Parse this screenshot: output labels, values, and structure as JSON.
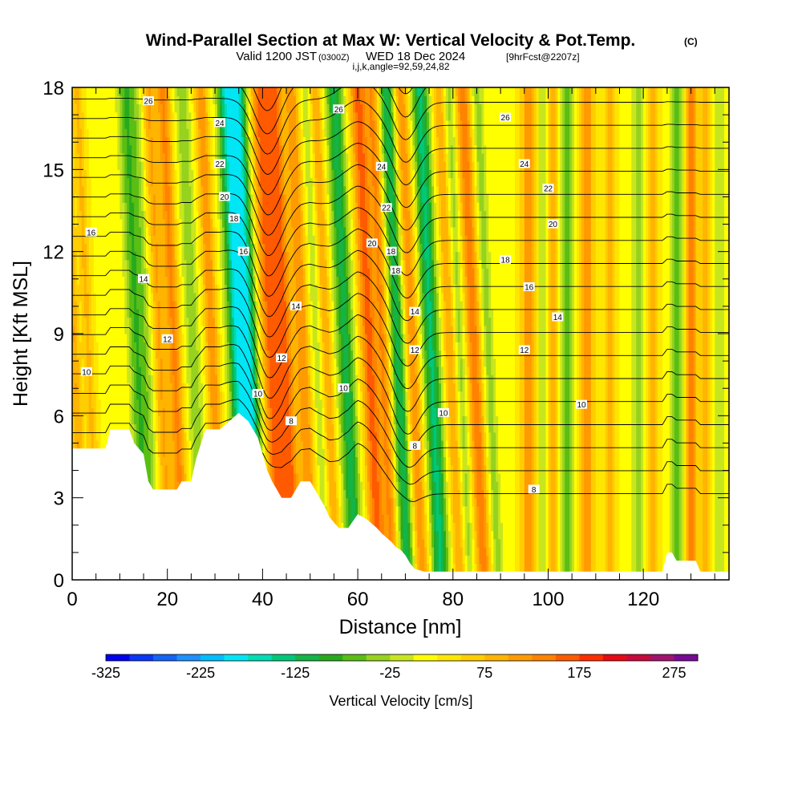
{
  "header": {
    "title": "Wind-Parallel Section at Max W: Vertical Velocity & Pot.Temp.",
    "copyright": "(C)",
    "valid_main": "Valid 1200 JST",
    "valid_utc": "(0300Z)",
    "valid_date": "WED 18 Dec 2024",
    "forecast": "[9hrFcst@2207z]",
    "indices": "i,j,k,angle=92,59,24,82"
  },
  "chart_data": {
    "type": "heatmap",
    "title": "Wind-Parallel Section at Max W: Vertical Velocity & Pot.Temp.",
    "xlabel": "Distance [nm]",
    "ylabel": "Height [Kft MSL]",
    "xlim": [
      0,
      138
    ],
    "ylim": [
      0,
      18
    ],
    "x_ticks": [
      0,
      20,
      40,
      60,
      80,
      100,
      120
    ],
    "x_ticklabels": [
      "0",
      "20",
      "40",
      "60",
      "80",
      "100",
      "120"
    ],
    "y_ticks": [
      0,
      3,
      6,
      9,
      12,
      15,
      18
    ],
    "y_ticklabels": [
      "0",
      "3",
      "6",
      "9",
      "12",
      "15",
      "18"
    ],
    "colorbar": {
      "label": "Vertical Velocity [cm/s]",
      "min": -325,
      "max": 300,
      "step": 25,
      "ticks": [
        -325,
        -225,
        -125,
        -25,
        75,
        175,
        275
      ],
      "ticklabels": [
        "-325",
        "-225",
        "-125",
        "-25",
        "75",
        "175",
        "275"
      ],
      "colors": [
        "#0000f0",
        "#0a37f5",
        "#1464f5",
        "#1e90ff",
        "#00bfff",
        "#00e6f5",
        "#00dcb4",
        "#00c878",
        "#14b446",
        "#28aa1e",
        "#5abe14",
        "#96d21e",
        "#c8e61e",
        "#ffff00",
        "#ffe600",
        "#ffcd00",
        "#ffb400",
        "#ff9b00",
        "#ff8200",
        "#ff5a00",
        "#ff2d00",
        "#e60a14",
        "#c80a3c",
        "#a0146e",
        "#780a96"
      ]
    },
    "terrain_kft": [
      [
        0,
        4.8
      ],
      [
        7,
        4.8
      ],
      [
        8,
        5.5
      ],
      [
        12,
        5.5
      ],
      [
        13,
        5.0
      ],
      [
        15,
        4.6
      ],
      [
        16,
        3.6
      ],
      [
        17,
        3.3
      ],
      [
        22,
        3.3
      ],
      [
        23,
        3.6
      ],
      [
        25,
        3.6
      ],
      [
        26,
        4.4
      ],
      [
        28,
        5.5
      ],
      [
        31,
        5.5
      ],
      [
        33,
        5.8
      ],
      [
        35,
        6.1
      ],
      [
        37,
        5.8
      ],
      [
        39,
        5.2
      ],
      [
        40,
        4.6
      ],
      [
        41,
        4.0
      ],
      [
        42,
        3.6
      ],
      [
        43,
        3.3
      ],
      [
        44,
        3.0
      ],
      [
        46,
        3.0
      ],
      [
        47,
        3.3
      ],
      [
        48,
        3.6
      ],
      [
        50,
        3.6
      ],
      [
        51,
        3.3
      ],
      [
        52,
        3.0
      ],
      [
        53,
        2.7
      ],
      [
        54,
        2.3
      ],
      [
        55,
        2.1
      ],
      [
        56,
        1.9
      ],
      [
        58,
        1.9
      ],
      [
        60,
        2.4
      ],
      [
        62,
        2.2
      ],
      [
        64,
        1.9
      ],
      [
        65,
        1.7
      ],
      [
        67,
        1.4
      ],
      [
        68,
        1.2
      ],
      [
        69,
        1.1
      ],
      [
        70,
        0.9
      ],
      [
        71,
        0.6
      ],
      [
        72,
        0.4
      ],
      [
        74,
        0.3
      ],
      [
        124,
        0.3
      ],
      [
        125,
        1.0
      ],
      [
        126,
        1.0
      ],
      [
        127,
        0.7
      ],
      [
        131,
        0.7
      ],
      [
        132,
        0.3
      ],
      [
        138,
        0.3
      ]
    ],
    "velocity_features": [
      {
        "x": 1,
        "w": 1.2,
        "peak": 80
      },
      {
        "x": 4,
        "w": 1.2,
        "peak": 60
      },
      {
        "x": 14,
        "w": 1.6,
        "peak": -90
      },
      {
        "x": 16,
        "w": 1.4,
        "peak": -50
      },
      {
        "x": 19,
        "w": 1.3,
        "peak": 80
      },
      {
        "x": 22,
        "w": 1.5,
        "peak": 110
      },
      {
        "x": 26,
        "w": 1.6,
        "peak": -60
      },
      {
        "x": 30,
        "w": 1.4,
        "peak": 100
      },
      {
        "x": 35.5,
        "w": 2.0,
        "peak": -200
      },
      {
        "x": 38,
        "w": 1.5,
        "peak": -150
      },
      {
        "x": 42,
        "w": 1.6,
        "peak": 120
      },
      {
        "x": 45,
        "w": 2.0,
        "peak": 150
      },
      {
        "x": 49,
        "w": 1.5,
        "peak": 100
      },
      {
        "x": 52,
        "w": 1.2,
        "peak": -40
      },
      {
        "x": 54,
        "w": 1.2,
        "peak": 80
      },
      {
        "x": 58,
        "w": 1.8,
        "peak": -130
      },
      {
        "x": 63,
        "w": 1.8,
        "peak": 140
      },
      {
        "x": 66,
        "w": 1.4,
        "peak": 100
      },
      {
        "x": 69,
        "w": 1.6,
        "peak": -140
      },
      {
        "x": 72,
        "w": 1.6,
        "peak": 100
      },
      {
        "x": 76,
        "w": 1.8,
        "peak": -150
      },
      {
        "x": 80,
        "w": 1.4,
        "peak": 80
      },
      {
        "x": 82,
        "w": 1.2,
        "peak": -60
      },
      {
        "x": 85,
        "w": 1.6,
        "peak": 120
      },
      {
        "x": 88,
        "w": 1.2,
        "peak": -60
      },
      {
        "x": 96,
        "w": 1.6,
        "peak": 100
      },
      {
        "x": 99,
        "w": 1.4,
        "peak": -50
      },
      {
        "x": 101,
        "w": 1.2,
        "peak": 80
      },
      {
        "x": 104,
        "w": 1.5,
        "peak": -90
      },
      {
        "x": 108,
        "w": 1.6,
        "peak": 100
      },
      {
        "x": 113,
        "w": 1.2,
        "peak": 70
      },
      {
        "x": 119,
        "w": 1.6,
        "peak": -50
      },
      {
        "x": 122,
        "w": 1.2,
        "peak": 70
      },
      {
        "x": 127,
        "w": 1.4,
        "peak": -80
      },
      {
        "x": 130,
        "w": 1.2,
        "peak": 120
      },
      {
        "x": 133,
        "w": 1.0,
        "peak": 80
      },
      {
        "x": 136,
        "w": 1.2,
        "peak": -40
      }
    ],
    "contour_labels": [
      {
        "text": "26",
        "x": 16,
        "y": 17.5
      },
      {
        "text": "24",
        "x": 31,
        "y": 16.7
      },
      {
        "text": "22",
        "x": 31,
        "y": 15.2
      },
      {
        "text": "20",
        "x": 32,
        "y": 14.0
      },
      {
        "text": "18",
        "x": 34,
        "y": 13.2
      },
      {
        "text": "16",
        "x": 4,
        "y": 12.7
      },
      {
        "text": "16",
        "x": 36,
        "y": 12.0
      },
      {
        "text": "14",
        "x": 15,
        "y": 11.0
      },
      {
        "text": "14",
        "x": 47,
        "y": 10.0
      },
      {
        "text": "12",
        "x": 20,
        "y": 8.8
      },
      {
        "text": "12",
        "x": 44,
        "y": 8.1
      },
      {
        "text": "10",
        "x": 3,
        "y": 7.6
      },
      {
        "text": "10",
        "x": 39,
        "y": 6.8
      },
      {
        "text": "10",
        "x": 57,
        "y": 7.0
      },
      {
        "text": "8",
        "x": 46,
        "y": 5.8
      },
      {
        "text": "26",
        "x": 56,
        "y": 17.2
      },
      {
        "text": "24",
        "x": 65,
        "y": 15.1
      },
      {
        "text": "22",
        "x": 66,
        "y": 13.6
      },
      {
        "text": "20",
        "x": 63,
        "y": 12.3
      },
      {
        "text": "18",
        "x": 67,
        "y": 12.0
      },
      {
        "text": "18",
        "x": 68,
        "y": 11.3
      },
      {
        "text": "14",
        "x": 72,
        "y": 9.8
      },
      {
        "text": "12",
        "x": 72,
        "y": 8.4
      },
      {
        "text": "10",
        "x": 78,
        "y": 6.1
      },
      {
        "text": "8",
        "x": 72,
        "y": 4.9
      },
      {
        "text": "26",
        "x": 91,
        "y": 16.9
      },
      {
        "text": "24",
        "x": 95,
        "y": 15.2
      },
      {
        "text": "22",
        "x": 100,
        "y": 14.3
      },
      {
        "text": "20",
        "x": 101,
        "y": 13.0
      },
      {
        "text": "18",
        "x": 91,
        "y": 11.7
      },
      {
        "text": "16",
        "x": 96,
        "y": 10.7
      },
      {
        "text": "14",
        "x": 102,
        "y": 9.6
      },
      {
        "text": "12",
        "x": 95,
        "y": 8.4
      },
      {
        "text": "10",
        "x": 107,
        "y": 6.4
      },
      {
        "text": "8",
        "x": 97,
        "y": 3.3
      }
    ]
  }
}
